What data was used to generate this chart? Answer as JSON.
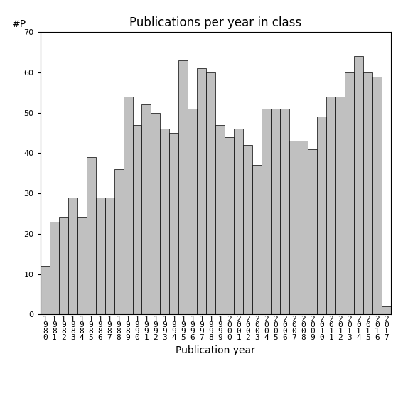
{
  "title": "Publications per year in class",
  "xlabel": "Publication year",
  "ylabel_text": "#P",
  "ylim": [
    0,
    70
  ],
  "yticks": [
    0,
    10,
    20,
    30,
    40,
    50,
    60,
    70
  ],
  "years": [
    "1980",
    "1981",
    "1982",
    "1983",
    "1984",
    "1985",
    "1986",
    "1987",
    "1988",
    "1989",
    "1990",
    "1991",
    "1992",
    "1993",
    "1994",
    "1995",
    "1996",
    "1997",
    "1998",
    "1999",
    "2000",
    "2001",
    "2002",
    "2003",
    "2004",
    "2005",
    "2006",
    "2007",
    "2008",
    "2009",
    "2010",
    "2011",
    "2012",
    "2013",
    "2014",
    "2015",
    "2016",
    "2017"
  ],
  "values": [
    12,
    23,
    24,
    29,
    24,
    39,
    29,
    29,
    36,
    54,
    47,
    52,
    50,
    46,
    45,
    63,
    51,
    61,
    60,
    47,
    44,
    46,
    42,
    37,
    51,
    51,
    51,
    43,
    43,
    41,
    49,
    54,
    54,
    60,
    64,
    60,
    59,
    2
  ],
  "bar_color": "#c0c0c0",
  "bar_edgecolor": "#000000",
  "background_color": "#ffffff",
  "title_fontsize": 12,
  "axis_label_fontsize": 10,
  "tick_fontsize": 8,
  "ylabel_fontsize": 10
}
